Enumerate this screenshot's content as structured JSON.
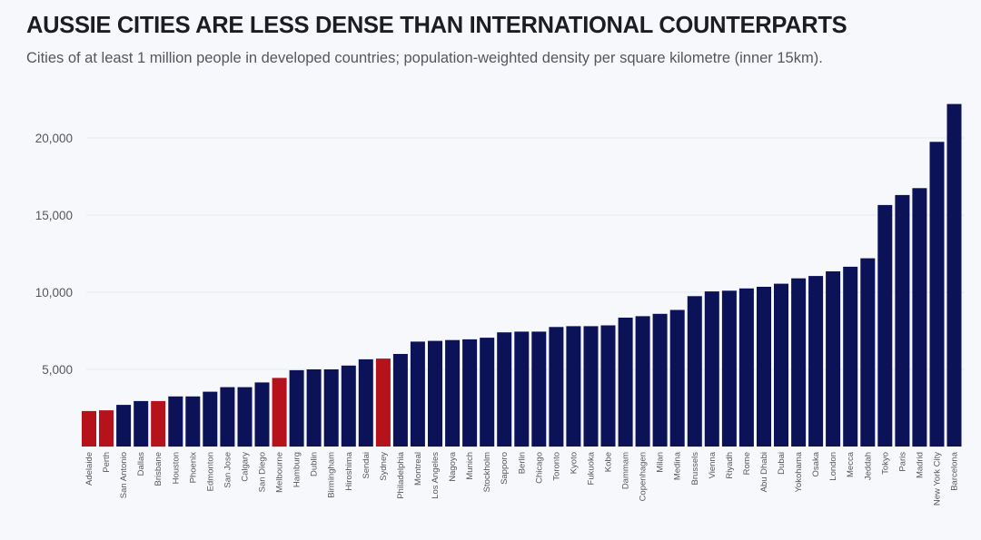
{
  "chart_data": {
    "type": "bar",
    "title": "AUSSIE CITIES ARE LESS DENSE THAN INTERNATIONAL COUNTERPARTS",
    "subtitle": "Cities of at least 1 million people in developed countries; population-weighted density per square kilometre (inner 15km).",
    "xlabel": "",
    "ylabel": "",
    "ylim": [
      0,
      22500
    ],
    "yticks": [
      5000,
      10000,
      15000,
      20000
    ],
    "ytick_labels": [
      "5,000",
      "10,000",
      "15,000",
      "20,000"
    ],
    "grid": true,
    "legend": "none",
    "colors": {
      "australian": "#b5121b",
      "international": "#0b1257"
    },
    "categories": [
      "Adelaide",
      "Perth",
      "San Antonio",
      "Dallas",
      "Brisbane",
      "Houston",
      "Phoenix",
      "Edmonton",
      "San Jose",
      "Calgary",
      "San Diego",
      "Melbourne",
      "Hamburg",
      "Dublin",
      "Birmingham",
      "Hiroshima",
      "Sendai",
      "Sydney",
      "Philadelphia",
      "Montreal",
      "Los Angeles",
      "Nagoya",
      "Munich",
      "Stockholm",
      "Sapporo",
      "Berlin",
      "Chicago",
      "Toronto",
      "Kyoto",
      "Fukuoka",
      "Kobe",
      "Dammam",
      "Copenhagen",
      "Milan",
      "Medina",
      "Brussels",
      "Vienna",
      "Riyadh",
      "Rome",
      "Abu Dhabi",
      "Dubai",
      "Yokohama",
      "Osaka",
      "London",
      "Mecca",
      "Jeddah",
      "Tokyo",
      "Paris",
      "Madrid",
      "New York City",
      "Barcelona"
    ],
    "values": [
      2300,
      2350,
      2700,
      2950,
      2950,
      3250,
      3250,
      3550,
      3850,
      3850,
      4150,
      4450,
      4950,
      5000,
      5000,
      5250,
      5650,
      5700,
      6000,
      6800,
      6850,
      6900,
      6950,
      7050,
      7400,
      7450,
      7450,
      7750,
      7800,
      7800,
      7850,
      8350,
      8450,
      8600,
      8850,
      9750,
      10050,
      10100,
      10250,
      10350,
      10550,
      10900,
      11050,
      11350,
      11650,
      12200,
      15650,
      16300,
      16750,
      19750,
      22200
    ],
    "highlight": [
      "Adelaide",
      "Perth",
      "Brisbane",
      "Melbourne",
      "Sydney"
    ]
  }
}
